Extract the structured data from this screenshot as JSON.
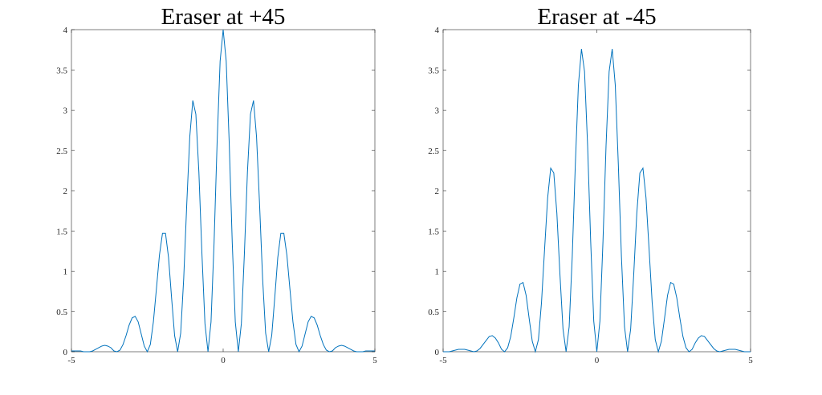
{
  "chart_data": [
    {
      "type": "line",
      "title": "Eraser at +45",
      "color": "#0072bd",
      "grid": false,
      "xlim": [
        -5,
        5
      ],
      "ylim": [
        0,
        4
      ],
      "xticks": [
        -5,
        0,
        5
      ],
      "yticks": [
        0,
        0.5,
        1,
        1.5,
        2,
        2.5,
        3,
        3.5,
        4
      ],
      "x": [
        -5,
        -4.9,
        -4.8,
        -4.7,
        -4.6,
        -4.5,
        -4.4,
        -4.3,
        -4.2,
        -4.1,
        -4,
        -3.9,
        -3.8,
        -3.7,
        -3.6,
        -3.5,
        -3.4,
        -3.3,
        -3.2,
        -3.1,
        -3,
        -2.9,
        -2.8,
        -2.7,
        -2.6,
        -2.5,
        -2.4,
        -2.3,
        -2.2,
        -2.1,
        -2,
        -1.9,
        -1.8,
        -1.7,
        -1.6,
        -1.5,
        -1.4,
        -1.3,
        -1.2,
        -1.1,
        -1,
        -0.9,
        -0.8,
        -0.7,
        -0.6,
        -0.5,
        -0.4,
        -0.3,
        -0.2,
        -0.1,
        0,
        0.1,
        0.2,
        0.3,
        0.4,
        0.5,
        0.6,
        0.7,
        0.8,
        0.9,
        1,
        1.1,
        1.2,
        1.3,
        1.4,
        1.5,
        1.6,
        1.7,
        1.8,
        1.9,
        2,
        2.1,
        2.2,
        2.3,
        2.4,
        2.5,
        2.6,
        2.7,
        2.8,
        2.9,
        3,
        3.1,
        3.2,
        3.3,
        3.4,
        3.5,
        3.6,
        3.7,
        3.8,
        3.9,
        4,
        4.1,
        4.2,
        4.3,
        4.4,
        4.5,
        4.6,
        4.7,
        4.8,
        4.9,
        5
      ],
      "values": [
        0.01,
        0.01,
        0.01,
        0.01,
        0,
        0,
        0,
        0.01,
        0.03,
        0.05,
        0.07,
        0.08,
        0.07,
        0.05,
        0.01,
        0,
        0.02,
        0.09,
        0.2,
        0.33,
        0.42,
        0.44,
        0.37,
        0.22,
        0.07,
        0,
        0.09,
        0.37,
        0.78,
        1.2,
        1.47,
        1.47,
        1.17,
        0.67,
        0.2,
        0,
        0.23,
        0.91,
        1.83,
        2.67,
        3.12,
        2.95,
        2.23,
        1.22,
        0.35,
        0,
        0.37,
        1.35,
        2.59,
        3.61,
        4,
        3.61,
        2.59,
        1.35,
        0.37,
        0,
        0.35,
        1.22,
        2.23,
        2.95,
        3.12,
        2.67,
        1.83,
        0.91,
        0.23,
        0,
        0.2,
        0.67,
        1.17,
        1.47,
        1.47,
        1.2,
        0.78,
        0.37,
        0.09,
        0,
        0.07,
        0.22,
        0.37,
        0.44,
        0.42,
        0.33,
        0.2,
        0.09,
        0.02,
        0,
        0.01,
        0.05,
        0.07,
        0.08,
        0.07,
        0.05,
        0.03,
        0.01,
        0,
        0,
        0,
        0.01,
        0.01,
        0.01,
        0.01
      ]
    },
    {
      "type": "line",
      "title": "Eraser at -45",
      "color": "#0072bd",
      "grid": false,
      "xlim": [
        -5,
        5
      ],
      "ylim": [
        0,
        4
      ],
      "xticks": [
        -5,
        0,
        5
      ],
      "yticks": [
        0,
        0.5,
        1,
        1.5,
        2,
        2.5,
        3,
        3.5,
        4
      ],
      "x": [
        -5,
        -4.9,
        -4.8,
        -4.7,
        -4.6,
        -4.5,
        -4.4,
        -4.3,
        -4.2,
        -4.1,
        -4,
        -3.9,
        -3.8,
        -3.7,
        -3.6,
        -3.5,
        -3.4,
        -3.3,
        -3.2,
        -3.1,
        -3,
        -2.9,
        -2.8,
        -2.7,
        -2.6,
        -2.5,
        -2.4,
        -2.3,
        -2.2,
        -2.1,
        -2,
        -1.9,
        -1.8,
        -1.7,
        -1.6,
        -1.5,
        -1.4,
        -1.3,
        -1.2,
        -1.1,
        -1,
        -0.9,
        -0.8,
        -0.7,
        -0.6,
        -0.5,
        -0.4,
        -0.3,
        -0.2,
        -0.1,
        0,
        0.1,
        0.2,
        0.3,
        0.4,
        0.5,
        0.6,
        0.7,
        0.8,
        0.9,
        1,
        1.1,
        1.2,
        1.3,
        1.4,
        1.5,
        1.6,
        1.7,
        1.8,
        1.9,
        2,
        2.1,
        2.2,
        2.3,
        2.4,
        2.5,
        2.6,
        2.7,
        2.8,
        2.9,
        3,
        3.1,
        3.2,
        3.3,
        3.4,
        3.5,
        3.6,
        3.7,
        3.8,
        3.9,
        4,
        4.1,
        4.2,
        4.3,
        4.4,
        4.5,
        4.6,
        4.7,
        4.8,
        4.9,
        5
      ],
      "values": [
        0,
        0,
        0,
        0.01,
        0.02,
        0.03,
        0.03,
        0.03,
        0.02,
        0.01,
        0,
        0.01,
        0.04,
        0.09,
        0.14,
        0.19,
        0.2,
        0.17,
        0.11,
        0.03,
        0,
        0.05,
        0.19,
        0.42,
        0.67,
        0.84,
        0.86,
        0.7,
        0.41,
        0.13,
        0,
        0.15,
        0.61,
        1.27,
        1.91,
        2.28,
        2.22,
        1.72,
        0.96,
        0.28,
        0,
        0.31,
        1.18,
        2.32,
        3.31,
        3.76,
        3.48,
        2.56,
        1.37,
        0.38,
        0,
        0.38,
        1.37,
        2.56,
        3.48,
        3.76,
        3.31,
        2.32,
        1.18,
        0.31,
        0,
        0.28,
        0.96,
        1.72,
        2.22,
        2.28,
        1.91,
        1.27,
        0.61,
        0.15,
        0,
        0.13,
        0.41,
        0.7,
        0.86,
        0.84,
        0.67,
        0.42,
        0.19,
        0.05,
        0,
        0.03,
        0.11,
        0.17,
        0.2,
        0.19,
        0.14,
        0.09,
        0.04,
        0.01,
        0,
        0.01,
        0.02,
        0.03,
        0.03,
        0.03,
        0.02,
        0.01,
        0,
        0,
        0
      ]
    }
  ]
}
